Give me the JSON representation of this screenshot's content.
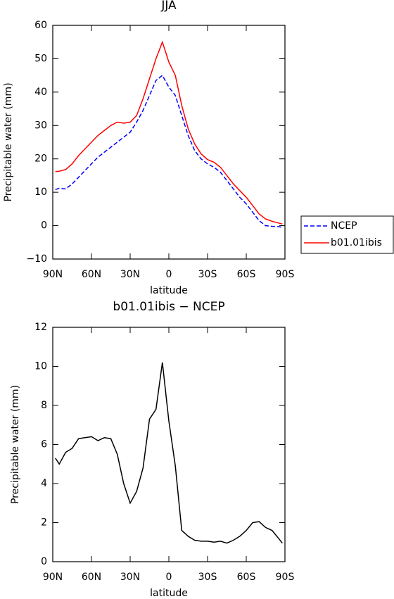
{
  "chart_data": [
    {
      "type": "line",
      "title": "JJA",
      "xlabel": "latitude",
      "ylabel": "Precipitable water (mm)",
      "x": [
        88,
        85,
        80,
        75,
        70,
        65,
        60,
        55,
        50,
        45,
        40,
        35,
        30,
        25,
        20,
        15,
        10,
        5,
        0,
        -5,
        -10,
        -15,
        -20,
        -25,
        -30,
        -35,
        -40,
        -45,
        -50,
        -55,
        -60,
        -65,
        -70,
        -75,
        -80,
        -85,
        -88
      ],
      "series": [
        {
          "name": "NCEP",
          "color": "#0000ff",
          "linestyle": "dashed",
          "values": [
            10.8,
            11.2,
            11,
            12.5,
            14.5,
            16.5,
            18.5,
            20.5,
            22,
            23.5,
            25,
            26.5,
            28,
            31,
            34.5,
            39,
            43.5,
            45,
            41.5,
            39,
            33,
            27,
            22.5,
            20,
            18.5,
            17.5,
            16,
            13.5,
            11,
            8.5,
            6.5,
            4,
            1.5,
            0,
            -0.2,
            -0.3,
            -0.5
          ]
        },
        {
          "name": "b01.01ibis",
          "color": "#ff0000",
          "linestyle": "solid",
          "values": [
            16.2,
            16.3,
            16.8,
            18.5,
            21,
            23,
            25,
            27,
            28.5,
            30,
            31,
            30.7,
            31,
            33,
            38,
            44,
            50,
            55,
            49,
            45,
            36,
            29,
            24.5,
            21.5,
            19.8,
            19,
            17.5,
            15,
            12.5,
            10.5,
            8.5,
            6,
            3.5,
            2,
            1.3,
            0.8,
            0.5
          ]
        }
      ],
      "xlim": [
        90,
        -90
      ],
      "xticks": [
        {
          "value": 90,
          "label": "90N"
        },
        {
          "value": 60,
          "label": "60N"
        },
        {
          "value": 30,
          "label": "30N"
        },
        0,
        {
          "value": -30,
          "label": "30S"
        },
        {
          "value": -60,
          "label": "60S"
        },
        {
          "value": -90,
          "label": "90S"
        }
      ],
      "ylim": [
        -10,
        60
      ],
      "yticks": [
        {
          "value": -10,
          "label": "−10"
        },
        0,
        10,
        20,
        30,
        40,
        50,
        60
      ],
      "legend": "right"
    },
    {
      "type": "line",
      "title": "b01.01ibis − NCEP",
      "xlabel": "latitude",
      "ylabel": "Precipitable water (mm)",
      "x": [
        88,
        85,
        80,
        75,
        70,
        65,
        60,
        55,
        50,
        45,
        40,
        35,
        30,
        25,
        20,
        15,
        10,
        5,
        0,
        -5,
        -10,
        -15,
        -20,
        -25,
        -30,
        -35,
        -40,
        -45,
        -50,
        -55,
        -60,
        -65,
        -70,
        -75,
        -80,
        -85,
        -88
      ],
      "values": [
        5.3,
        5.0,
        5.6,
        5.8,
        6.3,
        6.35,
        6.4,
        6.2,
        6.35,
        6.3,
        5.5,
        4.0,
        3.0,
        3.6,
        4.8,
        7.3,
        7.8,
        10.2,
        7.2,
        4.9,
        1.6,
        1.3,
        1.1,
        1.05,
        1.05,
        1.0,
        1.05,
        0.95,
        1.1,
        1.3,
        1.6,
        2.0,
        2.05,
        1.75,
        1.6,
        1.2,
        0.95
      ],
      "color": "#000000",
      "xlim": [
        90,
        -90
      ],
      "xticks": [
        {
          "value": 90,
          "label": "90N"
        },
        {
          "value": 60,
          "label": "60N"
        },
        {
          "value": 30,
          "label": "30N"
        },
        0,
        {
          "value": -30,
          "label": "30S"
        },
        {
          "value": -60,
          "label": "60S"
        },
        {
          "value": -90,
          "label": "90S"
        }
      ],
      "ylim": [
        0,
        12
      ],
      "yticks": [
        0,
        2,
        4,
        6,
        8,
        10,
        12
      ]
    }
  ]
}
